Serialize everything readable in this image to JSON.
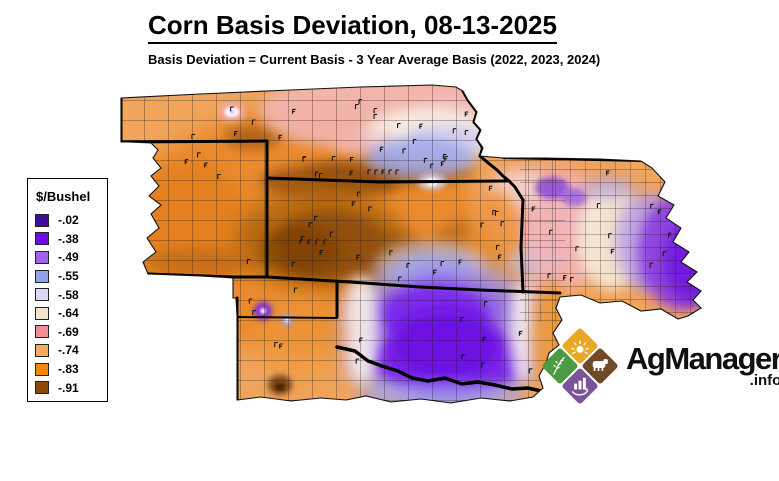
{
  "header": {
    "title": "Corn Basis Deviation, 08-13-2025",
    "subtitle": "Basis Deviation = Current Basis - 3 Year Average Basis (2022, 2023, 2024)"
  },
  "legend": {
    "title": "$/Bushel",
    "items": [
      {
        "label": "-.02",
        "color": "#3B0D9E"
      },
      {
        "label": "-.38",
        "color": "#6B0BE8"
      },
      {
        "label": "-.49",
        "color": "#9D63E8"
      },
      {
        "label": "-.55",
        "color": "#94A0E8"
      },
      {
        "label": "-.58",
        "color": "#DDD6F4"
      },
      {
        "label": "-.64",
        "color": "#F4E2CB"
      },
      {
        "label": "-.69",
        "color": "#F18E95"
      },
      {
        "label": "-.74",
        "color": "#F4AA60"
      },
      {
        "label": "-.83",
        "color": "#F48905"
      },
      {
        "label": "-.91",
        "color": "#8C4A0A"
      }
    ]
  },
  "logo": {
    "name": "AgManager",
    "tld": ".info"
  }
}
